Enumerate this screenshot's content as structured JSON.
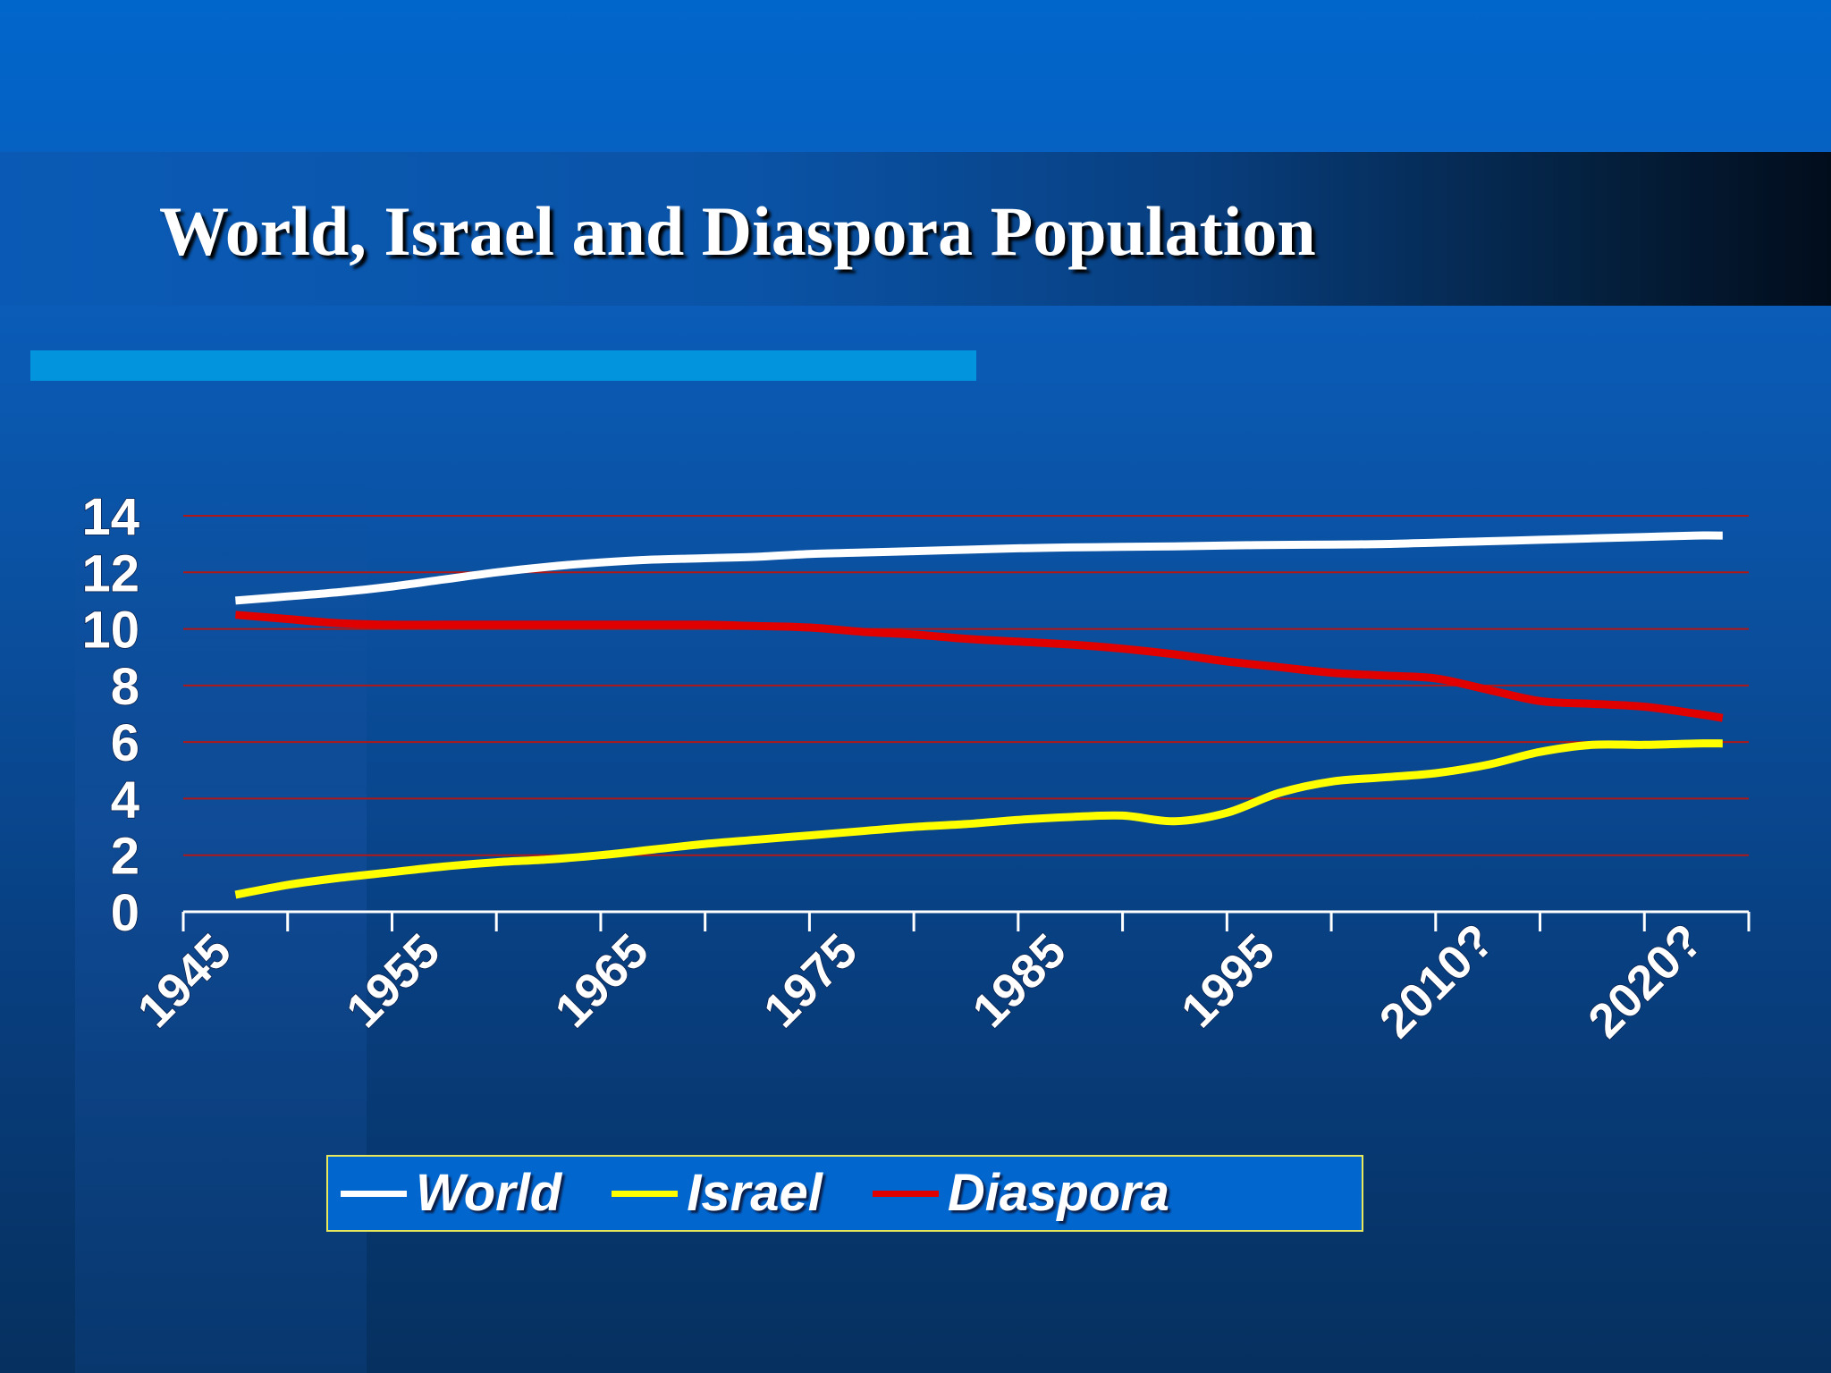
{
  "title": "World, Israel and Diaspora Population",
  "colors": {
    "gridline": "#b01818",
    "axis": "#ffffff",
    "world": "#ffffff",
    "israel": "#ffff00",
    "diaspora": "#e00000",
    "legend_border": "#e8e85a",
    "legend_background": "#0167cf"
  },
  "chart_data": {
    "type": "line",
    "title": "World, Israel and Diaspora Population",
    "xlabel": "",
    "ylabel": "",
    "ylim": [
      0,
      14
    ],
    "yticks": [
      0,
      2,
      4,
      6,
      8,
      10,
      12,
      14
    ],
    "y_grid": true,
    "legend_position": "bottom",
    "x_tick_labels": [
      "1945",
      "1955",
      "1965",
      "1975",
      "1985",
      "1995",
      "2010?",
      "2020?"
    ],
    "series": [
      {
        "name": "World",
        "color": "#ffffff",
        "points": [
          [
            0.5,
            11.0
          ],
          [
            1.0,
            11.15
          ],
          [
            1.5,
            11.3
          ],
          [
            2.0,
            11.5
          ],
          [
            2.5,
            11.75
          ],
          [
            3.0,
            12.0
          ],
          [
            3.5,
            12.2
          ],
          [
            4.0,
            12.35
          ],
          [
            4.5,
            12.45
          ],
          [
            5.0,
            12.5
          ],
          [
            5.5,
            12.55
          ],
          [
            6.0,
            12.65
          ],
          [
            6.5,
            12.7
          ],
          [
            7.0,
            12.75
          ],
          [
            7.5,
            12.8
          ],
          [
            8.0,
            12.85
          ],
          [
            8.5,
            12.88
          ],
          [
            9.0,
            12.9
          ],
          [
            9.5,
            12.92
          ],
          [
            10.0,
            12.95
          ],
          [
            10.5,
            12.97
          ],
          [
            11.0,
            12.98
          ],
          [
            11.5,
            13.0
          ],
          [
            12.0,
            13.05
          ],
          [
            12.5,
            13.1
          ],
          [
            13.0,
            13.15
          ],
          [
            13.5,
            13.2
          ],
          [
            14.0,
            13.25
          ],
          [
            14.5,
            13.3
          ],
          [
            14.75,
            13.3
          ]
        ]
      },
      {
        "name": "Israel",
        "color": "#ffff00",
        "points": [
          [
            0.5,
            0.6
          ],
          [
            1.0,
            0.95
          ],
          [
            1.5,
            1.2
          ],
          [
            2.0,
            1.4
          ],
          [
            2.5,
            1.6
          ],
          [
            3.0,
            1.75
          ],
          [
            3.5,
            1.85
          ],
          [
            4.0,
            2.0
          ],
          [
            4.5,
            2.2
          ],
          [
            5.0,
            2.4
          ],
          [
            5.5,
            2.55
          ],
          [
            6.0,
            2.7
          ],
          [
            6.5,
            2.85
          ],
          [
            7.0,
            3.0
          ],
          [
            7.5,
            3.1
          ],
          [
            8.0,
            3.25
          ],
          [
            8.5,
            3.35
          ],
          [
            9.0,
            3.4
          ],
          [
            9.5,
            3.2
          ],
          [
            10.0,
            3.5
          ],
          [
            10.5,
            4.2
          ],
          [
            11.0,
            4.6
          ],
          [
            11.5,
            4.75
          ],
          [
            12.0,
            4.9
          ],
          [
            12.5,
            5.2
          ],
          [
            13.0,
            5.65
          ],
          [
            13.5,
            5.9
          ],
          [
            14.0,
            5.9
          ],
          [
            14.5,
            5.95
          ],
          [
            14.75,
            5.95
          ]
        ]
      },
      {
        "name": "Diaspora",
        "color": "#e00000",
        "points": [
          [
            0.5,
            10.5
          ],
          [
            1.0,
            10.35
          ],
          [
            1.5,
            10.2
          ],
          [
            2.0,
            10.15
          ],
          [
            2.5,
            10.15
          ],
          [
            3.0,
            10.15
          ],
          [
            3.5,
            10.15
          ],
          [
            4.0,
            10.15
          ],
          [
            4.5,
            10.15
          ],
          [
            5.0,
            10.15
          ],
          [
            5.5,
            10.1
          ],
          [
            6.0,
            10.05
          ],
          [
            6.5,
            9.9
          ],
          [
            7.0,
            9.8
          ],
          [
            7.5,
            9.65
          ],
          [
            8.0,
            9.55
          ],
          [
            8.5,
            9.45
          ],
          [
            9.0,
            9.3
          ],
          [
            9.5,
            9.1
          ],
          [
            10.0,
            8.85
          ],
          [
            10.5,
            8.65
          ],
          [
            11.0,
            8.45
          ],
          [
            11.5,
            8.35
          ],
          [
            12.0,
            8.25
          ],
          [
            12.5,
            7.85
          ],
          [
            13.0,
            7.45
          ],
          [
            13.5,
            7.35
          ],
          [
            14.0,
            7.25
          ],
          [
            14.5,
            7.0
          ],
          [
            14.75,
            6.85
          ]
        ]
      }
    ]
  }
}
